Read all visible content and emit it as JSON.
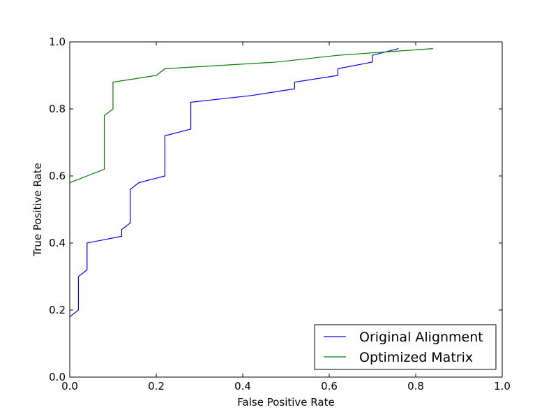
{
  "chart_data": {
    "type": "line",
    "title": "",
    "xlabel": "False Positive Rate",
    "ylabel": "True Positive Rate",
    "xlim": [
      0.0,
      1.0
    ],
    "ylim": [
      0.0,
      1.0
    ],
    "xticks": [
      "0.0",
      "0.2",
      "0.4",
      "0.6",
      "0.8",
      "1.0"
    ],
    "yticks": [
      "0.0",
      "0.2",
      "0.4",
      "0.6",
      "0.8",
      "1.0"
    ],
    "grid": false,
    "legend_position": "bottom-right",
    "series": [
      {
        "name": "Original Alignment",
        "color": "#0000ff",
        "x": [
          0.0,
          0.02,
          0.02,
          0.04,
          0.04,
          0.12,
          0.12,
          0.14,
          0.14,
          0.16,
          0.22,
          0.22,
          0.28,
          0.28,
          0.42,
          0.52,
          0.52,
          0.62,
          0.62,
          0.7,
          0.7,
          0.76
        ],
        "y": [
          0.18,
          0.2,
          0.3,
          0.32,
          0.4,
          0.42,
          0.44,
          0.46,
          0.56,
          0.58,
          0.6,
          0.72,
          0.74,
          0.82,
          0.84,
          0.86,
          0.88,
          0.9,
          0.92,
          0.94,
          0.96,
          0.98
        ]
      },
      {
        "name": "Optimized Matrix",
        "color": "#008000",
        "x": [
          0.0,
          0.08,
          0.08,
          0.1,
          0.1,
          0.2,
          0.22,
          0.48,
          0.62,
          0.84
        ],
        "y": [
          0.58,
          0.62,
          0.78,
          0.8,
          0.88,
          0.9,
          0.92,
          0.94,
          0.96,
          0.98
        ]
      }
    ]
  }
}
